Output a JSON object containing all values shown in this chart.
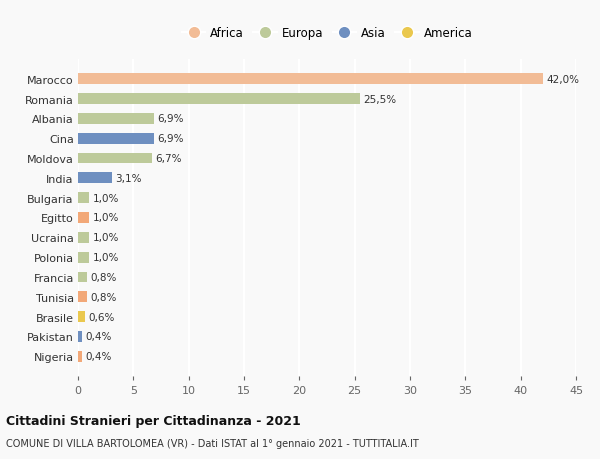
{
  "categories": [
    "Marocco",
    "Romania",
    "Albania",
    "Cina",
    "Moldova",
    "India",
    "Bulgaria",
    "Egitto",
    "Ucraina",
    "Polonia",
    "Francia",
    "Tunisia",
    "Brasile",
    "Pakistan",
    "Nigeria"
  ],
  "values": [
    42.0,
    25.5,
    6.9,
    6.9,
    6.7,
    3.1,
    1.0,
    1.0,
    1.0,
    1.0,
    0.8,
    0.8,
    0.6,
    0.4,
    0.4
  ],
  "labels": [
    "42,0%",
    "25,5%",
    "6,9%",
    "6,9%",
    "6,7%",
    "3,1%",
    "1,0%",
    "1,0%",
    "1,0%",
    "1,0%",
    "0,8%",
    "0,8%",
    "0,6%",
    "0,4%",
    "0,4%"
  ],
  "colors": [
    "#F2BC96",
    "#BDCA9A",
    "#BDCA9A",
    "#6E8FC0",
    "#BDCA9A",
    "#6E8FC0",
    "#BDCA9A",
    "#F2A878",
    "#BDCA9A",
    "#BDCA9A",
    "#BDCA9A",
    "#F2A878",
    "#EAC84E",
    "#6E8FC0",
    "#F2A878"
  ],
  "legend_labels": [
    "Africa",
    "Europa",
    "Asia",
    "America"
  ],
  "legend_colors": [
    "#F2BC96",
    "#BDCA9A",
    "#6E8FC0",
    "#EAC84E"
  ],
  "title_bold": "Cittadini Stranieri per Cittadinanza - 2021",
  "subtitle": "COMUNE DI VILLA BARTOLOMEA (VR) - Dati ISTAT al 1° gennaio 2021 - TUTTITALIA.IT",
  "xlim": [
    0,
    45
  ],
  "xticks": [
    0,
    5,
    10,
    15,
    20,
    25,
    30,
    35,
    40,
    45
  ],
  "background_color": "#F9F9F9",
  "grid_color": "#FFFFFF",
  "bar_height": 0.55
}
